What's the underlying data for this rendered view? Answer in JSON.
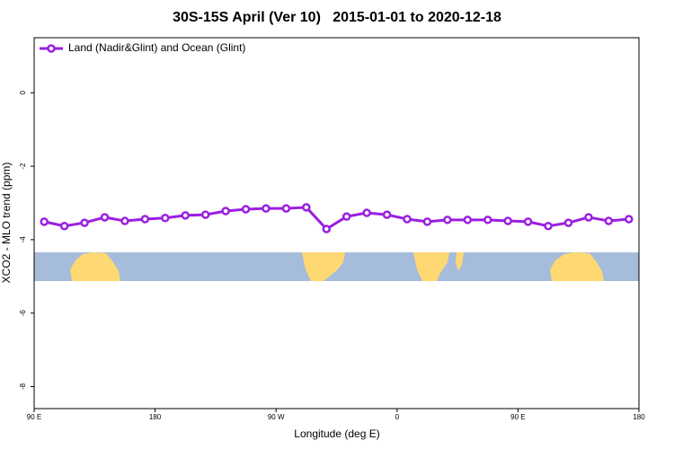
{
  "chart_data": {
    "type": "line",
    "title": "30S-15S April (Ver 10)   2015-01-01 to 2020-12-18",
    "x_label": "Longitude (deg E)",
    "y_label": "XCO2 - MLO trend (ppm)",
    "xlim": [
      90,
      540
    ],
    "ylim": [
      -8.6,
      1.5
    ],
    "xticks": [
      {
        "value": 90,
        "label": "90 E"
      },
      {
        "value": 180,
        "label": "180"
      },
      {
        "value": 270,
        "label": "90 W"
      },
      {
        "value": 360,
        "label": "0"
      },
      {
        "value": 450,
        "label": "90 E"
      },
      {
        "value": 540,
        "label": "180"
      }
    ],
    "yticks": [
      0,
      -2,
      -4,
      -6,
      -8
    ],
    "legend_position": "upper left",
    "x": [
      97.5,
      112.5,
      127.5,
      142.5,
      157.5,
      172.5,
      187.5,
      202.5,
      217.5,
      232.5,
      247.5,
      262.5,
      277.5,
      292.5,
      307.5,
      322.5,
      337.5,
      352.5,
      367.5,
      382.5,
      397.5,
      412.5,
      427.5,
      442.5,
      457.5,
      472.5,
      487.5,
      502.5,
      517.5,
      532.5
    ],
    "series": [
      {
        "name": "Land (Nadir&Glint) and Ocean (Glint)",
        "color": "#9b1fe0",
        "values": [
          -3.51,
          -3.63,
          -3.54,
          -3.39,
          -3.49,
          -3.44,
          -3.41,
          -3.34,
          -3.32,
          -3.22,
          -3.17,
          -3.15,
          -3.15,
          -3.12,
          -3.71,
          -3.37,
          -3.27,
          -3.32,
          -3.44,
          -3.51,
          -3.46,
          -3.46,
          -3.46,
          -3.49,
          -3.51,
          -3.63,
          -3.54,
          -3.39,
          -3.49,
          -3.44
        ]
      }
    ]
  }
}
